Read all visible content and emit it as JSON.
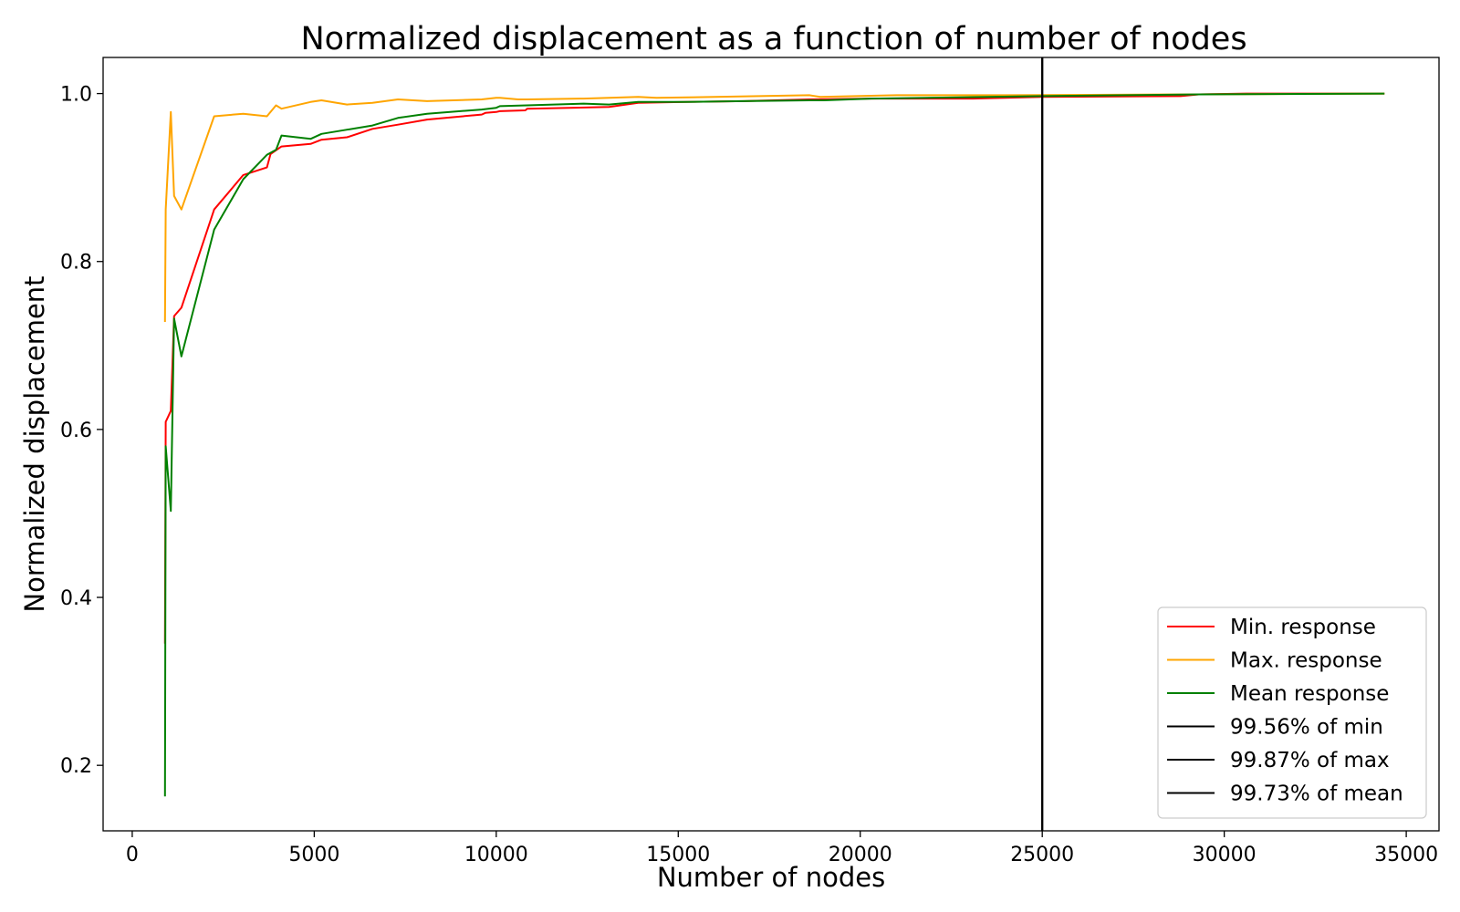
{
  "chart_data": {
    "type": "line",
    "title": "Normalized displacement as a function of number of nodes",
    "xlabel": "Number of nodes",
    "ylabel": "Normalized displacement",
    "xlim": [
      -800,
      35900
    ],
    "ylim": [
      0.122,
      1.043
    ],
    "xticks": [
      0,
      5000,
      10000,
      15000,
      20000,
      25000,
      30000,
      35000
    ],
    "xtick_labels": [
      "0",
      "5000",
      "10000",
      "15000",
      "20000",
      "25000",
      "30000",
      "35000"
    ],
    "yticks": [
      0.2,
      0.4,
      0.6,
      0.8,
      1.0
    ],
    "ytick_labels": [
      "0.2",
      "0.4",
      "0.6",
      "0.8",
      "1.0"
    ],
    "grid": false,
    "legend_position": "lower-right",
    "series": [
      {
        "name": "Min. response",
        "color": "#ff0000",
        "x": [
          900,
          920,
          1060,
          1150,
          1350,
          2250,
          3050,
          3700,
          3800,
          4100,
          4900,
          5200,
          5900,
          6600,
          7300,
          8100,
          9600,
          9700,
          10000,
          10100,
          10800,
          10850,
          13100,
          13900,
          15200,
          16800,
          18600,
          20300,
          23100,
          25000,
          28800,
          29300,
          30600,
          34400
        ],
        "y": [
          0.345,
          0.609,
          0.622,
          0.735,
          0.745,
          0.862,
          0.903,
          0.912,
          0.928,
          0.937,
          0.94,
          0.945,
          0.948,
          0.958,
          0.963,
          0.969,
          0.975,
          0.977,
          0.978,
          0.979,
          0.98,
          0.982,
          0.984,
          0.989,
          0.99,
          0.991,
          0.993,
          0.994,
          0.994,
          0.996,
          0.997,
          0.999,
          1.0,
          1.0
        ]
      },
      {
        "name": "Max. response",
        "color": "#ffa500",
        "x": [
          900,
          920,
          1060,
          1150,
          1350,
          2250,
          3050,
          3700,
          3950,
          4100,
          4900,
          5200,
          5900,
          6600,
          7300,
          8100,
          9600,
          10000,
          10100,
          10600,
          10850,
          12400,
          13100,
          13900,
          14400,
          16000,
          18600,
          18900,
          21000,
          24000,
          29300,
          34400
        ],
        "y": [
          0.728,
          0.862,
          0.978,
          0.878,
          0.862,
          0.973,
          0.976,
          0.973,
          0.986,
          0.982,
          0.99,
          0.992,
          0.987,
          0.989,
          0.993,
          0.991,
          0.993,
          0.995,
          0.995,
          0.993,
          0.993,
          0.994,
          0.995,
          0.996,
          0.995,
          0.996,
          0.998,
          0.996,
          0.998,
          0.998,
          0.999,
          1.0
        ]
      },
      {
        "name": "Mean response",
        "color": "#008000",
        "x": [
          900,
          920,
          1060,
          1150,
          1350,
          2250,
          3050,
          3700,
          3950,
          4100,
          4900,
          5200,
          5900,
          6600,
          7300,
          8100,
          9600,
          10000,
          10100,
          10850,
          12400,
          13100,
          13900,
          15200,
          16800,
          18600,
          19000,
          20300,
          25000,
          29300,
          34400
        ],
        "y": [
          0.163,
          0.58,
          0.503,
          0.732,
          0.687,
          0.838,
          0.898,
          0.927,
          0.933,
          0.95,
          0.946,
          0.952,
          0.957,
          0.962,
          0.971,
          0.976,
          0.981,
          0.983,
          0.985,
          0.986,
          0.988,
          0.987,
          0.99,
          0.99,
          0.991,
          0.992,
          0.992,
          0.994,
          0.997,
          0.999,
          1.0
        ]
      }
    ],
    "vlines": [
      {
        "name": "99.56% of min",
        "x": 25000,
        "color": "#000000"
      },
      {
        "name": "99.87% of max",
        "x": 25000,
        "color": "#000000"
      },
      {
        "name": "99.73% of mean",
        "x": 25000,
        "color": "#000000"
      }
    ]
  }
}
